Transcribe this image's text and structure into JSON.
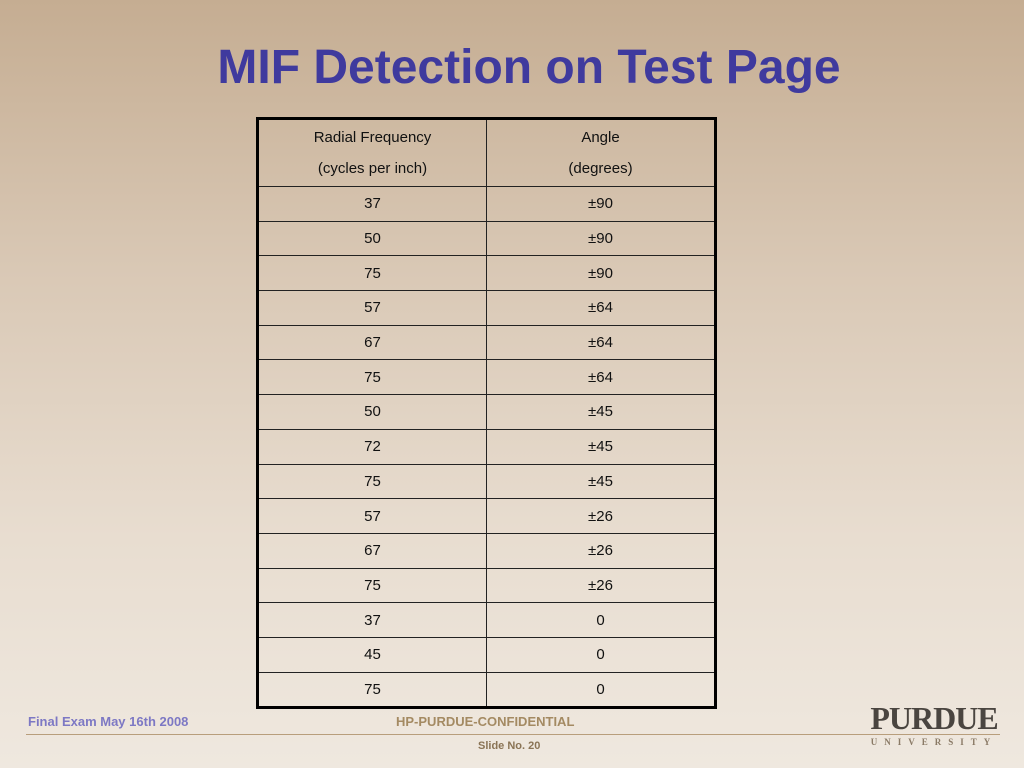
{
  "title": "MIF Detection on Test Page",
  "table": {
    "headers": [
      {
        "line1": "Radial Frequency",
        "line2": "(cycles per inch)"
      },
      {
        "line1": "Angle",
        "line2": "(degrees)"
      }
    ],
    "rows": [
      [
        "37",
        "±90"
      ],
      [
        "50",
        "±90"
      ],
      [
        "75",
        "±90"
      ],
      [
        "57",
        "±64"
      ],
      [
        "67",
        "±64"
      ],
      [
        "75",
        "±64"
      ],
      [
        "50",
        "±45"
      ],
      [
        "72",
        "±45"
      ],
      [
        "75",
        "±45"
      ],
      [
        "57",
        "±26"
      ],
      [
        "67",
        "±26"
      ],
      [
        "75",
        "±26"
      ],
      [
        "37",
        "0"
      ],
      [
        "45",
        "0"
      ],
      [
        "75",
        "0"
      ]
    ]
  },
  "footer": {
    "left": "Final Exam May 16th 2008",
    "center": "HP-PURDUE-CONFIDENTIAL",
    "slide_no": "Slide No. 20",
    "logo_text": "PURDUE",
    "logo_sub": "UNIVERSITY"
  }
}
